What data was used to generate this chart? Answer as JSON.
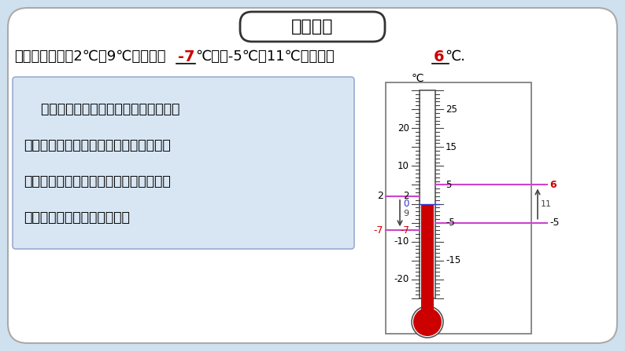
{
  "bg_color": "#cfe0ee",
  "title": "自学导航",
  "task_text1": "自学任务二：比2℃低9℃的温度是",
  "answer1": "-7",
  "task_text2": "℃，比-5℃高11℃的温度是",
  "answer2": "6",
  "task_text3": "℃.",
  "box_text_lines": [
    "    温度计上每个刻度值都对应一个温度，",
    "那么，我们能不能像温度计表示温度这样",
    "把所有的有理数用一个图形表示出来呢？",
    "如果能，这个图形该怎么画？"
  ],
  "box_bg": "#d8e6f3",
  "box_border": "#9aaccf",
  "mercury_color": "#cc0000",
  "bulb_color": "#cc0000",
  "line_color": "#cc44cc",
  "arrow_color": "#444444",
  "red_color": "#cc0000",
  "blue_color": "#3333cc",
  "temp_min": -25,
  "temp_max": 30
}
